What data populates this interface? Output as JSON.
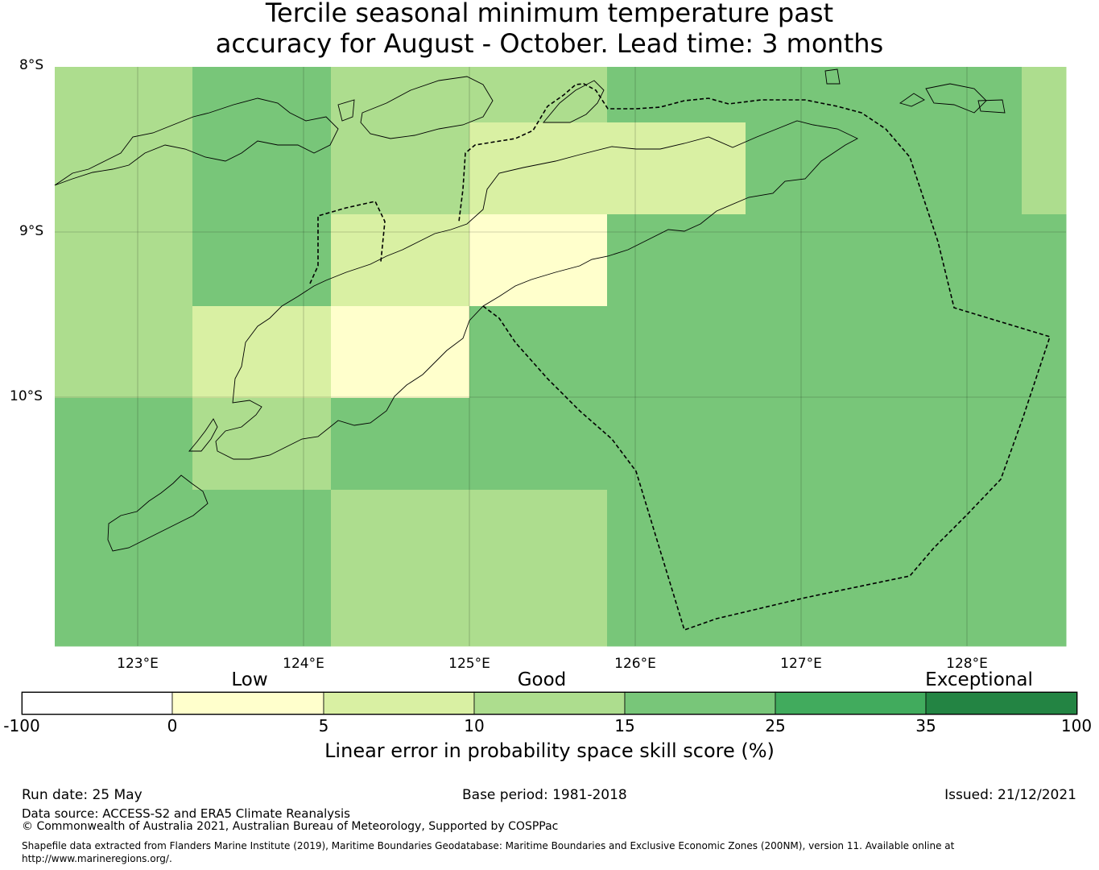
{
  "title": {
    "line1": "Tercile seasonal minimum temperature past",
    "line2": "accuracy for August - October. Lead time: 3 months"
  },
  "map": {
    "lat_labels": [
      "8°S",
      "9°S",
      "10°S"
    ],
    "lon_labels": [
      "123°E",
      "124°E",
      "125°E",
      "126°E",
      "127°E",
      "128°E"
    ],
    "skill_grid": {
      "description_of_rows": "rows from north (top) to south, columns west to east",
      "rows": [
        [
          10,
          15,
          10,
          10,
          15,
          15,
          15,
          10
        ],
        [
          10,
          15,
          10,
          5,
          5,
          15,
          15,
          10
        ],
        [
          10,
          15,
          5,
          0,
          15,
          15,
          15,
          15
        ],
        [
          10,
          5,
          0,
          15,
          15,
          15,
          15,
          15
        ],
        [
          15,
          10,
          15,
          15,
          15,
          15,
          15,
          15
        ],
        [
          15,
          15,
          10,
          10,
          15,
          15,
          15,
          15
        ]
      ]
    }
  },
  "colorbar": {
    "category_labels": [
      "Low",
      "Good",
      "Exceptional"
    ],
    "ticks": [
      "-100",
      "0",
      "5",
      "10",
      "15",
      "25",
      "35",
      "100"
    ],
    "colors": [
      "#ffffff",
      "#ffffcc",
      "#d9f0a3",
      "#addd8e",
      "#78c679",
      "#41ab5d",
      "#238443"
    ],
    "title": "Linear error in probability space skill score (%)"
  },
  "footer": {
    "run_date": "Run date: 25 May",
    "base_period": "Base period: 1981-2018",
    "issued": "Issued: 21/12/2021",
    "data_source": "Data source: ACCESS-S2 and ERA5 Climate Reanalysis",
    "copyright": "© Commonwealth of Australia 2021, Australian Bureau of Meteorology, Supported by COSPPac",
    "shapefile_line1": "Shapefile data extracted from Flanders Marine Institute (2019), Maritime Boundaries Geodatabase: Maritime Boundaries and Exclusive Economic Zones (200NM), version 11. Available online at",
    "shapefile_line2": "http://www.marineregions.org/."
  }
}
